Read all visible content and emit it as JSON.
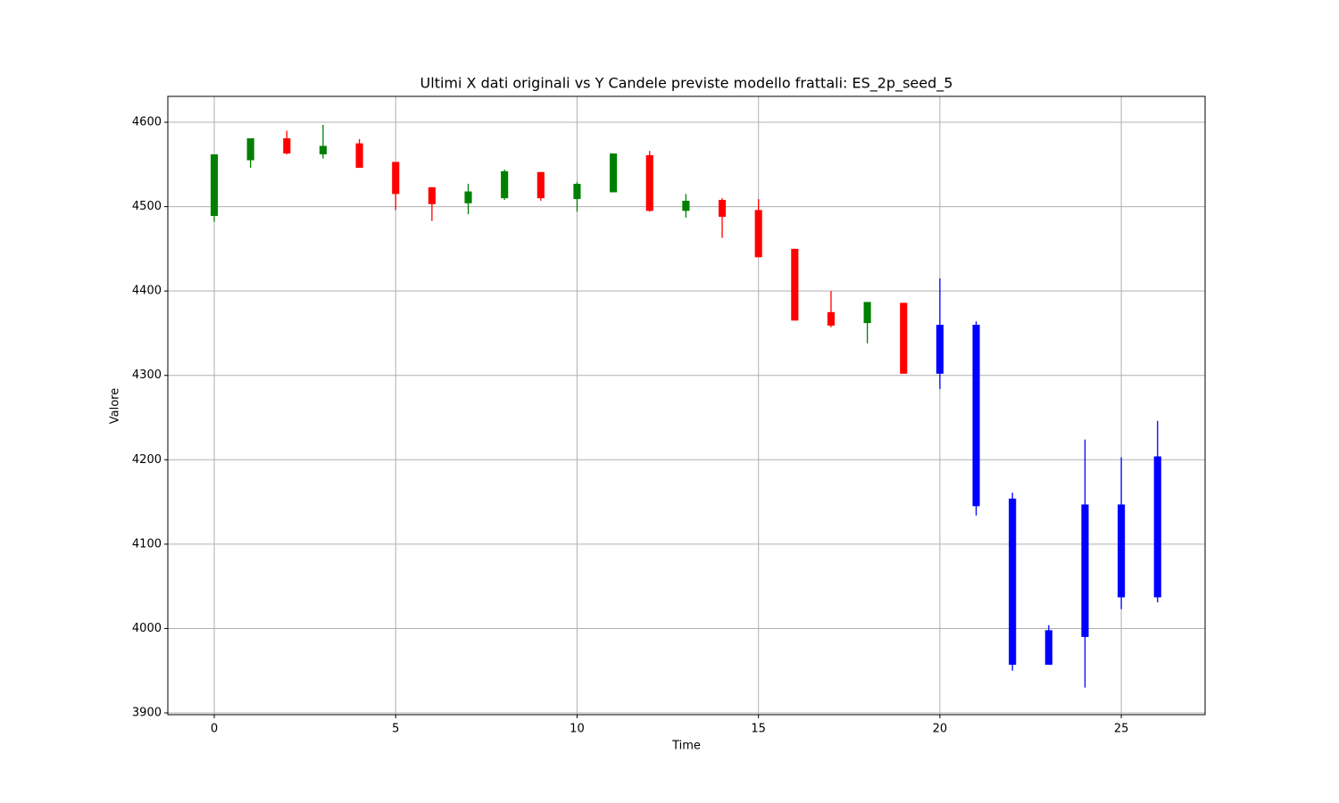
{
  "chart_data": {
    "type": "candlestick",
    "title": "Ultimi X dati originali vs Y Candele previste modello frattali: ES_2p_seed_5",
    "xlabel": "Time",
    "ylabel": "Valore",
    "x": [
      0,
      1,
      2,
      3,
      4,
      5,
      6,
      7,
      8,
      9,
      10,
      11,
      12,
      13,
      14,
      15,
      16,
      17,
      18,
      19,
      20,
      21,
      22,
      23,
      24,
      25,
      26
    ],
    "open": [
      4489,
      4555,
      4581,
      4562,
      4575,
      4553,
      4523,
      4504,
      4510,
      4541,
      4509,
      4517,
      4561,
      4495,
      4508,
      4496,
      4450,
      4375,
      4362,
      4386,
      4360,
      4360,
      4154,
      3998,
      3990,
      4037,
      4037
    ],
    "high": [
      4562,
      4581,
      4590,
      4597,
      4580,
      4553,
      4523,
      4527,
      4544,
      4541,
      4529,
      4563,
      4566,
      4515,
      4510,
      4509,
      4450,
      4400,
      4387,
      4386,
      4415,
      4364,
      4161,
      4004,
      4224,
      4203,
      4246
    ],
    "low": [
      4482,
      4546,
      4562,
      4557,
      4546,
      4496,
      4483,
      4491,
      4508,
      4507,
      4494,
      4517,
      4494,
      4487,
      4463,
      4440,
      4365,
      4357,
      4338,
      4302,
      4284,
      4134,
      3950,
      3957,
      3930,
      4023,
      4031
    ],
    "close": [
      4562,
      4581,
      4563,
      4572,
      4546,
      4515,
      4503,
      4518,
      4542,
      4510,
      4527,
      4563,
      4495,
      4507,
      4488,
      4440,
      4365,
      4359,
      4387,
      4302,
      4302,
      4145,
      3957,
      3957,
      4147,
      4147,
      4204
    ],
    "colors": [
      "green",
      "green",
      "red",
      "green",
      "red",
      "red",
      "red",
      "green",
      "green",
      "red",
      "green",
      "green",
      "red",
      "green",
      "red",
      "red",
      "red",
      "red",
      "green",
      "red",
      "blue",
      "blue",
      "blue",
      "blue",
      "blue",
      "blue",
      "blue"
    ],
    "xlim": [
      -1.28,
      27.31
    ],
    "ylim": [
      3897.9,
      4630.7
    ],
    "xticks": [
      0,
      5,
      10,
      15,
      20,
      25
    ],
    "yticks": [
      3900,
      4000,
      4100,
      4200,
      4300,
      4400,
      4500,
      4600
    ],
    "grid": true
  }
}
